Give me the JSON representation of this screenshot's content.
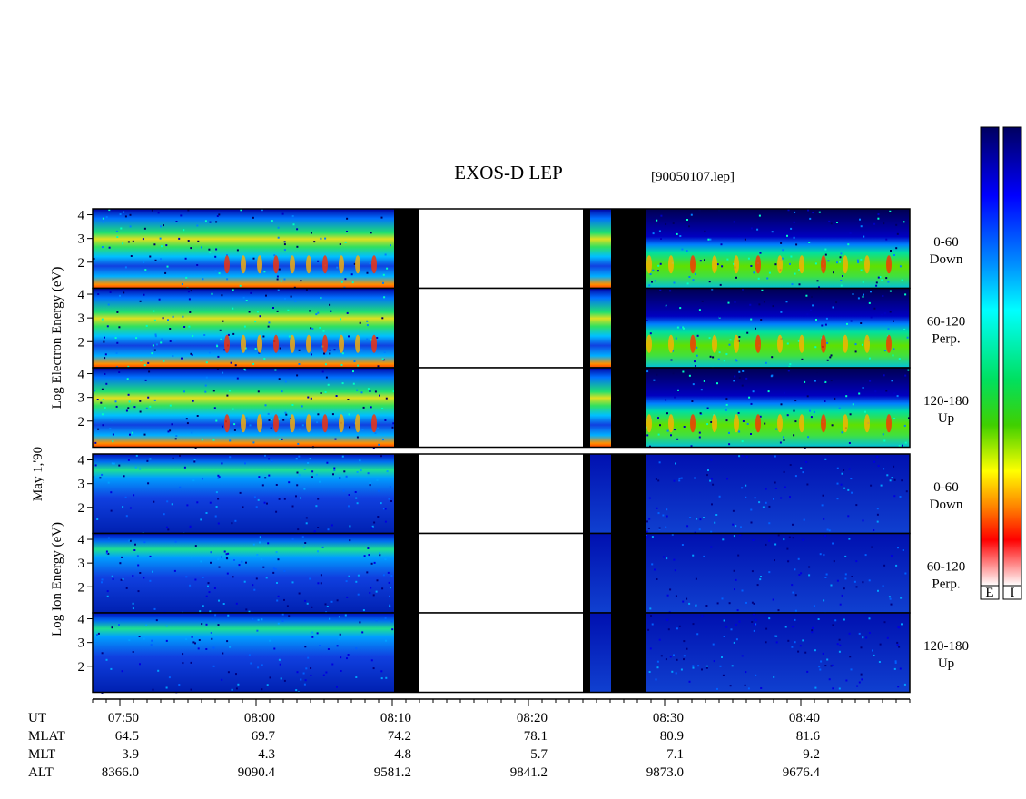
{
  "header": {
    "title": "EXOS-D LEP",
    "file": "[90050107.lep]"
  },
  "axis_labels": {
    "electron": "Log  Electron  Energy (eV)",
    "date": "May  1,'90",
    "ion": "Log  Ion  Energy (eV)"
  },
  "yticks": [
    4,
    3,
    2
  ],
  "ylim": [
    0.9,
    4.25
  ],
  "panels": [
    {
      "angle": "0-60",
      "direction": "Down"
    },
    {
      "angle": "60-120",
      "direction": "Perp."
    },
    {
      "angle": "120-180",
      "direction": "Up"
    },
    {
      "angle": "0-60",
      "direction": "Down"
    },
    {
      "angle": "60-120",
      "direction": "Perp."
    },
    {
      "angle": "120-180",
      "direction": "Up"
    }
  ],
  "ephemeris": {
    "rows": [
      [
        "UT",
        "07:50",
        "08:00",
        "08:10",
        "08:20",
        "08:30",
        "08:40"
      ],
      [
        "MLAT",
        "64.5",
        "69.7",
        "74.2",
        "78.1",
        "80.9",
        "81.6"
      ],
      [
        "MLT",
        "3.9",
        "4.3",
        "4.8",
        "5.7",
        "7.1",
        "9.2"
      ],
      [
        "ALT",
        "8366.0",
        "9090.4",
        "9581.2",
        "9841.2",
        "9873.0",
        "9676.4"
      ]
    ]
  },
  "colorbar_labels": [
    "E",
    "I"
  ]
}
